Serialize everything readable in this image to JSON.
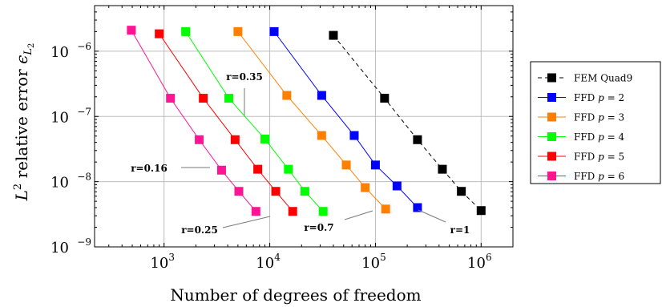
{
  "chart_data": {
    "type": "scatter",
    "xlabel": "Number of degrees of freedom",
    "ylabel_main": "relative error",
    "ylabel_math": "L",
    "ylabel_sup": "2",
    "ylabel_eps": "ϵ",
    "ylabel_sub": "L",
    "ylabel_sub2": "2",
    "x_scale": "log",
    "y_scale": "log",
    "xlim": [
      220,
      2000000
    ],
    "ylim": [
      1e-09,
      5e-06
    ],
    "grid": true,
    "legend_position": "outside-right",
    "x_ticks": [
      {
        "value": 1000,
        "base": "10",
        "exp": "3"
      },
      {
        "value": 10000,
        "base": "10",
        "exp": "4"
      },
      {
        "value": 100000,
        "base": "10",
        "exp": "5"
      },
      {
        "value": 1000000,
        "base": "10",
        "exp": "6"
      }
    ],
    "y_ticks": [
      {
        "value": 1e-09,
        "base": "10",
        "exp": "−9"
      },
      {
        "value": 1e-08,
        "base": "10",
        "exp": "−8"
      },
      {
        "value": 1e-07,
        "base": "10",
        "exp": "−7"
      },
      {
        "value": 1e-06,
        "base": "10",
        "exp": "−6"
      }
    ],
    "series": [
      {
        "name": "FEM Quad9",
        "color": "#000000",
        "dashed": true,
        "x": [
          40000,
          122000,
          250000,
          430000,
          650000,
          1000000
        ],
        "y": [
          1.75e-06,
          1.9e-07,
          4.4e-08,
          1.55e-08,
          7.1e-09,
          3.6e-09
        ]
      },
      {
        "name_prefix": "FFD",
        "name_math": "p",
        "name_value": "2",
        "color": "#0000ff",
        "dashed": false,
        "x": [
          11000,
          31000,
          63000,
          100000,
          160000,
          250000
        ],
        "y": [
          2e-06,
          2.1e-07,
          5.1e-08,
          1.8e-08,
          8.6e-09,
          4e-09
        ]
      },
      {
        "name_prefix": "FFD",
        "name_math": "p",
        "name_value": "3",
        "color": "#ff8000",
        "dashed": false,
        "x": [
          5000,
          14500,
          31000,
          53000,
          80000,
          125000
        ],
        "y": [
          2e-06,
          2.1e-07,
          5.1e-08,
          1.8e-08,
          8.1e-09,
          3.8e-09
        ]
      },
      {
        "name_prefix": "FFD",
        "name_math": "p",
        "name_value": "4",
        "color": "#00ff00",
        "dashed": false,
        "x": [
          1600,
          4100,
          9000,
          15000,
          21500,
          32000
        ],
        "y": [
          2e-06,
          1.9e-07,
          4.5e-08,
          1.55e-08,
          7.1e-09,
          3.5e-09
        ]
      },
      {
        "name_prefix": "FFD",
        "name_math": "p",
        "name_value": "5",
        "color": "#ff0000",
        "dashed": false,
        "x": [
          900,
          2350,
          4700,
          7700,
          11400,
          16500
        ],
        "y": [
          1.85e-06,
          1.9e-07,
          4.4e-08,
          1.55e-08,
          7.1e-09,
          3.5e-09
        ]
      },
      {
        "name_prefix": "FFD",
        "name_math": "p",
        "name_value": "6",
        "color": "#ff1493",
        "dashed": false,
        "x": [
          490,
          1150,
          2150,
          3500,
          5100,
          7400
        ],
        "y": [
          2.1e-06,
          1.9e-07,
          4.4e-08,
          1.5e-08,
          7.1e-09,
          3.5e-09
        ]
      }
    ],
    "annotations": [
      {
        "text": "r=0.35",
        "anchor_x": 7000,
        "anchor_y": 1.15e-07,
        "leader_to_x": 7000,
        "leader_to_y": 2.9e-07
      },
      {
        "text": "r=0.16",
        "anchor_x": 1050,
        "anchor_y": 1.5e-08,
        "leader_to_x": 2250,
        "leader_to_y": 1.5e-08
      },
      {
        "text": "r=0.25",
        "anchor_x": 9700,
        "anchor_y": 2.6e-09,
        "leader_to_x": 14000,
        "leader_to_y": 3.1e-09
      },
      {
        "text": "r=0.7",
        "anchor_x": 72000,
        "anchor_y": 2.7e-09,
        "leader_to_x": 115000,
        "leader_to_y": 3.4e-09
      },
      {
        "text": "r=1",
        "anchor_x": 490000,
        "anchor_y": 2.6e-09,
        "leader_to_x": 290000,
        "leader_to_y": 3.7e-09
      }
    ],
    "annotation_layout": [
      {
        "tx": 305,
        "ty": 100,
        "lx1": 305,
        "ly1": 110,
        "lx2": 305,
        "ly2": 144,
        "anchor": "middle"
      },
      {
        "tx": 186,
        "ty": 214,
        "lx1": 226,
        "ly1": 209,
        "lx2": 262,
        "ly2": 209,
        "anchor": "middle"
      },
      {
        "tx": 249,
        "ty": 291,
        "lx1": 278,
        "ly1": 284,
        "lx2": 337,
        "ly2": 270,
        "anchor": "middle"
      },
      {
        "tx": 398,
        "ty": 288,
        "lx1": 430,
        "ly1": 274,
        "lx2": 465,
        "ly2": 263,
        "anchor": "middle"
      },
      {
        "tx": 574,
        "ty": 291,
        "lx1": 556,
        "ly1": 277,
        "lx2": 522,
        "ly2": 262,
        "anchor": "middle"
      }
    ]
  }
}
